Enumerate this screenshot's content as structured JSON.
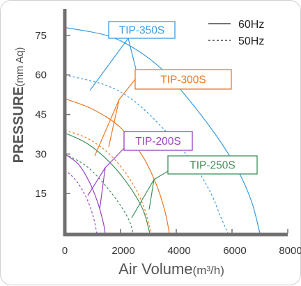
{
  "chart_data": {
    "type": "line",
    "xlabel": "Air Volume",
    "xunit": "(m³/h)",
    "ylabel": "PRESSURE",
    "yunit": "(mm Aq)",
    "xlim": [
      0,
      8000
    ],
    "ylim": [
      0,
      85
    ],
    "xticks": [
      "0",
      "2000",
      "4000",
      "6000",
      "8000"
    ],
    "yticks": [
      "15",
      "30",
      "45",
      "60",
      "75"
    ],
    "grid": false,
    "legend": {
      "position": "top-right",
      "entries": [
        {
          "label": "60Hz",
          "style": "solid"
        },
        {
          "label": "50Hz",
          "style": "dashed"
        }
      ]
    },
    "series": [
      {
        "name": "TIP-350S",
        "color": "#3a9be0",
        "hz60": [
          [
            0,
            78
          ],
          [
            1500,
            75
          ],
          [
            2500,
            70
          ],
          [
            3500,
            62
          ],
          [
            4500,
            50
          ],
          [
            5500,
            36
          ],
          [
            6200,
            24
          ],
          [
            6700,
            12
          ],
          [
            7000,
            0
          ]
        ],
        "hz50": [
          [
            0,
            60
          ],
          [
            1500,
            56
          ],
          [
            2500,
            50
          ],
          [
            3500,
            40
          ],
          [
            4500,
            28
          ],
          [
            5200,
            16
          ],
          [
            5600,
            6
          ],
          [
            5850,
            0
          ]
        ]
      },
      {
        "name": "TIP-300S",
        "color": "#ee7722",
        "hz60": [
          [
            0,
            51
          ],
          [
            1000,
            47
          ],
          [
            2000,
            40
          ],
          [
            2800,
            29
          ],
          [
            3300,
            18
          ],
          [
            3600,
            8
          ],
          [
            3750,
            0
          ]
        ],
        "hz50": [
          [
            0,
            39
          ],
          [
            800,
            36
          ],
          [
            1600,
            30
          ],
          [
            2300,
            21
          ],
          [
            2800,
            11
          ],
          [
            3100,
            0
          ]
        ]
      },
      {
        "name": "TIP-250S",
        "color": "#3f8f5a",
        "hz60": [
          [
            0,
            38
          ],
          [
            800,
            34
          ],
          [
            1600,
            27
          ],
          [
            2300,
            18
          ],
          [
            2800,
            9
          ],
          [
            3050,
            0
          ]
        ],
        "hz50": [
          [
            0,
            30
          ],
          [
            700,
            26
          ],
          [
            1300,
            20
          ],
          [
            1900,
            12
          ],
          [
            2300,
            5
          ],
          [
            2450,
            0
          ]
        ]
      },
      {
        "name": "TIP-200S",
        "color": "#9b3fc2",
        "hz60": [
          [
            0,
            30
          ],
          [
            500,
            26
          ],
          [
            900,
            19
          ],
          [
            1200,
            11
          ],
          [
            1380,
            4
          ],
          [
            1450,
            0
          ]
        ],
        "hz50": [
          [
            0,
            24
          ],
          [
            400,
            20
          ],
          [
            750,
            14
          ],
          [
            1000,
            7
          ],
          [
            1150,
            0
          ]
        ]
      }
    ]
  }
}
